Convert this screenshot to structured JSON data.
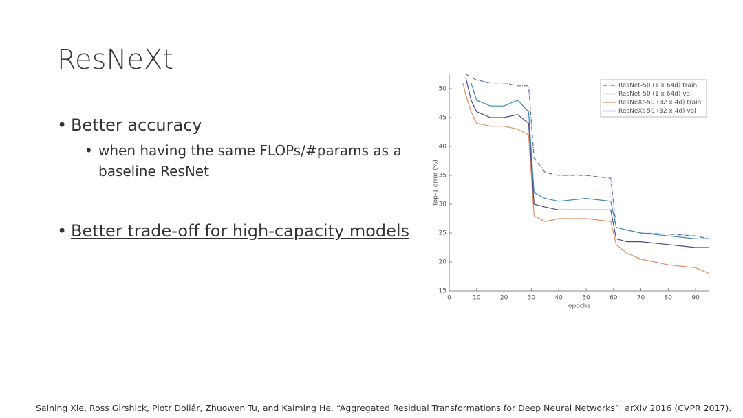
{
  "slide": {
    "title": "ResNeXt",
    "bullets": [
      {
        "text": "Better accuracy",
        "sub": [
          "when having the same FLOPs/#params as a baseline ResNet"
        ]
      },
      {
        "text": "Better trade-off for high-capacity models",
        "sub": []
      }
    ],
    "footer": "Saining Xie, Ross Girshick, Piotr Dollár, Zhuowen Tu, and Kaiming He. “Aggregated Residual Transformations for Deep Neural Networks”. arXiv 2016 (CVPR 2017)."
  },
  "chart_data": {
    "type": "line",
    "x_label": "epochs",
    "y_label": "top-1 error (%)",
    "x": [
      5,
      6,
      8,
      10,
      15,
      20,
      25,
      29,
      31,
      35,
      40,
      50,
      59,
      61,
      65,
      70,
      80,
      90,
      95
    ],
    "xlim": [
      0,
      95
    ],
    "xticks": [
      0,
      10,
      20,
      30,
      40,
      50,
      60,
      70,
      80,
      90
    ],
    "ylim": [
      15,
      52.5
    ],
    "yticks": [
      15,
      20,
      25,
      30,
      35,
      40,
      45,
      50
    ],
    "legend": "upper right",
    "series": [
      {
        "name": "ResNet-50 (1 x 64d) train",
        "color": "#5a6f9a",
        "dash": "6,2,1,2",
        "values": [
          null,
          52.5,
          52,
          51.5,
          51,
          51,
          50.5,
          50.5,
          38,
          35.5,
          35,
          35,
          34.5,
          26,
          25.5,
          25,
          24.8,
          24.5,
          24
        ]
      },
      {
        "name": "ResNet-50 (1 x 64d) val",
        "color": "#3b86b5",
        "values": [
          null,
          null,
          51,
          48,
          47,
          47,
          48,
          46,
          32,
          31,
          30.5,
          31,
          30.5,
          26,
          25.5,
          25,
          24.5,
          24,
          24
        ]
      },
      {
        "name": "ResNeXt-50 (32 x 4d) train",
        "color": "#e28a5c",
        "values": [
          51,
          49,
          46,
          44,
          43.5,
          43.5,
          43,
          42,
          28,
          27,
          27.5,
          27.5,
          27,
          23,
          21.5,
          20.5,
          19.5,
          19,
          18
        ]
      },
      {
        "name": "ResNeXt-50 (32 x 4d) val",
        "color": "#4a4a8c",
        "values": [
          null,
          52,
          48,
          46,
          45,
          45,
          45.5,
          44,
          30,
          29.5,
          29,
          29,
          29,
          24,
          23.5,
          23.5,
          23,
          22.5,
          22.5
        ]
      }
    ]
  }
}
